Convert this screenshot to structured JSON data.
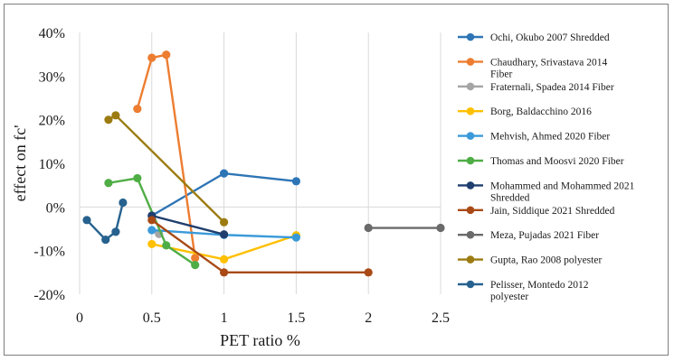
{
  "chart_data": {
    "type": "scatter",
    "xlabel": "PET ratio %",
    "ylabel": "effect on fc'",
    "xlim": [
      0,
      2.5
    ],
    "ylim": [
      -20,
      40
    ],
    "xticks": [
      0,
      0.5,
      1,
      1.5,
      2,
      2.5
    ],
    "xtick_labels": [
      "0",
      "0.5",
      "1",
      "1.5",
      "2",
      "2.5"
    ],
    "yticks": [
      40,
      30,
      20,
      10,
      0,
      -10,
      -20
    ],
    "ytick_labels": [
      "40%",
      "30%",
      "20%",
      "10%",
      "0%",
      "-10%",
      "-20%"
    ],
    "grid": "vertical",
    "legend_position": "right",
    "series": [
      {
        "name": "Ochi, Okubo 2007 Shredded",
        "color": "#2e75b6",
        "points": [
          [
            0.5,
            -2
          ],
          [
            1,
            7.7
          ],
          [
            1.5,
            5.9
          ]
        ]
      },
      {
        "name": "Chaudhary, Srivastava 2014 Fiber",
        "color": "#ed7d31",
        "points": [
          [
            0.4,
            22.5
          ],
          [
            0.5,
            34.2
          ],
          [
            0.6,
            34.9
          ],
          [
            0.8,
            -11.7
          ]
        ]
      },
      {
        "name": "Fraternali, Spadea 2014 Fiber",
        "color": "#a5a5a5",
        "points": [
          [
            0.55,
            -6.2
          ]
        ]
      },
      {
        "name": "Borg, Baldacchino 2016",
        "color": "#ffc000",
        "points": [
          [
            0.5,
            -8.5
          ],
          [
            1,
            -12
          ],
          [
            1.5,
            -6.5
          ]
        ]
      },
      {
        "name": "Mehvish, Ahmed 2020 Fiber",
        "color": "#3a9ad9",
        "points": [
          [
            0.5,
            -5.3
          ],
          [
            1,
            -6.4
          ],
          [
            1.5,
            -7
          ]
        ]
      },
      {
        "name": "Thomas and Moosvi 2020 Fiber",
        "color": "#4fad45",
        "points": [
          [
            0.2,
            5.5
          ],
          [
            0.4,
            6.6
          ],
          [
            0.6,
            -8.8
          ],
          [
            0.8,
            -13.3
          ]
        ]
      },
      {
        "name": "Mohammed and Mohammed 2021 Shredded",
        "color": "#1f3e6e",
        "points": [
          [
            0.5,
            -2
          ],
          [
            1,
            -6.3
          ]
        ]
      },
      {
        "name": "Jain, Siddique 2021 Shredded",
        "color": "#a94a16",
        "points": [
          [
            0.5,
            -3
          ],
          [
            1,
            -15
          ],
          [
            2,
            -15
          ]
        ]
      },
      {
        "name": "Meza, Pujadas 2021 Fiber",
        "color": "#6a6a6a",
        "points": [
          [
            2,
            -4.8
          ],
          [
            2.5,
            -4.8
          ]
        ]
      },
      {
        "name": "Gupta, Rao 2008 polyester",
        "color": "#9c7c12",
        "points": [
          [
            0.2,
            20
          ],
          [
            0.25,
            21
          ],
          [
            1,
            -3.5
          ]
        ]
      },
      {
        "name": "Pelisser, Montedo 2012 polyester",
        "color": "#27628f",
        "points": [
          [
            0.05,
            -3
          ],
          [
            0.18,
            -7.5
          ],
          [
            0.25,
            -5.7
          ],
          [
            0.3,
            1
          ]
        ]
      }
    ]
  }
}
